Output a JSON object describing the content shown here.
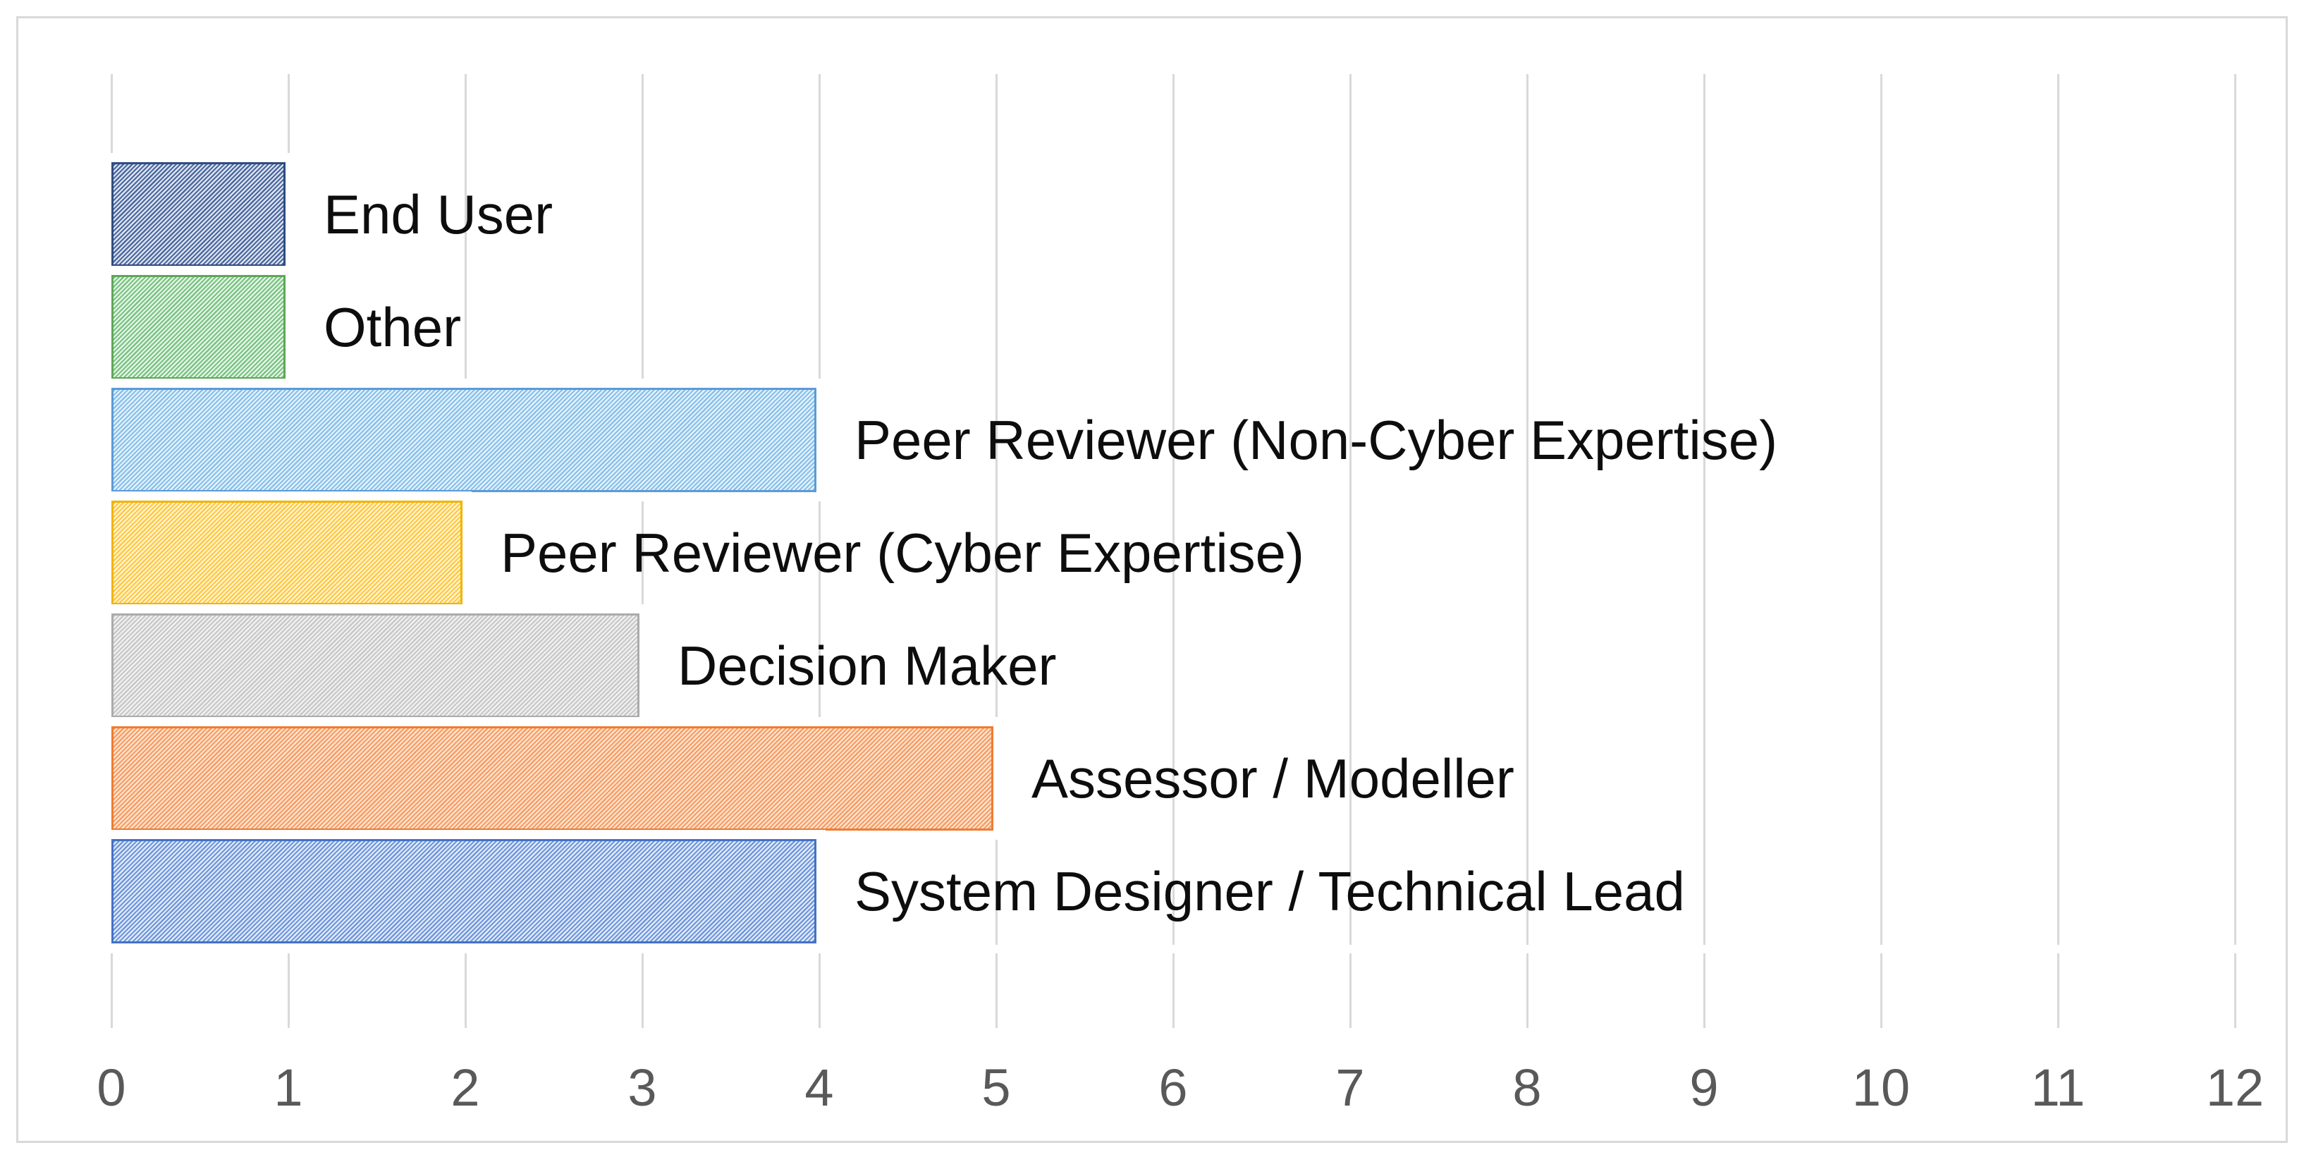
{
  "chart_data": {
    "type": "bar",
    "orientation": "horizontal",
    "title": "",
    "xlabel": "",
    "ylabel": "",
    "categories": [
      "End User",
      "Other",
      "Peer Reviewer (Non-Cyber Expertise)",
      "Peer Reviewer (Cyber Expertise)",
      "Decision Maker",
      "Assessor / Modeller",
      "System Designer / Technical Lead"
    ],
    "values": [
      1,
      1,
      4,
      2,
      3,
      5,
      4
    ],
    "xlim": [
      0,
      12
    ],
    "x_ticks": [
      "0",
      "1",
      "2",
      "3",
      "4",
      "5",
      "6",
      "7",
      "8",
      "9",
      "10",
      "11",
      "12"
    ],
    "grid": "vertical",
    "legend_position": "none",
    "fill_pattern": "diagonal-stripes",
    "bar_styles": [
      {
        "stripe": "#4a67a0",
        "tint": "#dfe5f0",
        "border": "#2f4d7f"
      },
      {
        "stripe": "#77c383",
        "tint": "#e8f5e7",
        "border": "#5fa657"
      },
      {
        "stripe": "#87c0ea",
        "tint": "#e6f2fb",
        "border": "#5b9bd5"
      },
      {
        "stripe": "#ffc93e",
        "tint": "#fff3d6",
        "border": "#f0b400"
      },
      {
        "stripe": "#c7c7c7",
        "tint": "#f1f1f1",
        "border": "#ababab"
      },
      {
        "stripe": "#f89c62",
        "tint": "#fce4d2",
        "border": "#ed7d31"
      },
      {
        "stripe": "#6d96dc",
        "tint": "#e4ebf8",
        "border": "#4472c4"
      }
    ],
    "colors": {
      "gridline": "#d9d9d9",
      "frame_border": "#d9d9d9",
      "tick_label": "#595959",
      "bar_label": "#0d0d0d",
      "background": "#ffffff"
    }
  }
}
